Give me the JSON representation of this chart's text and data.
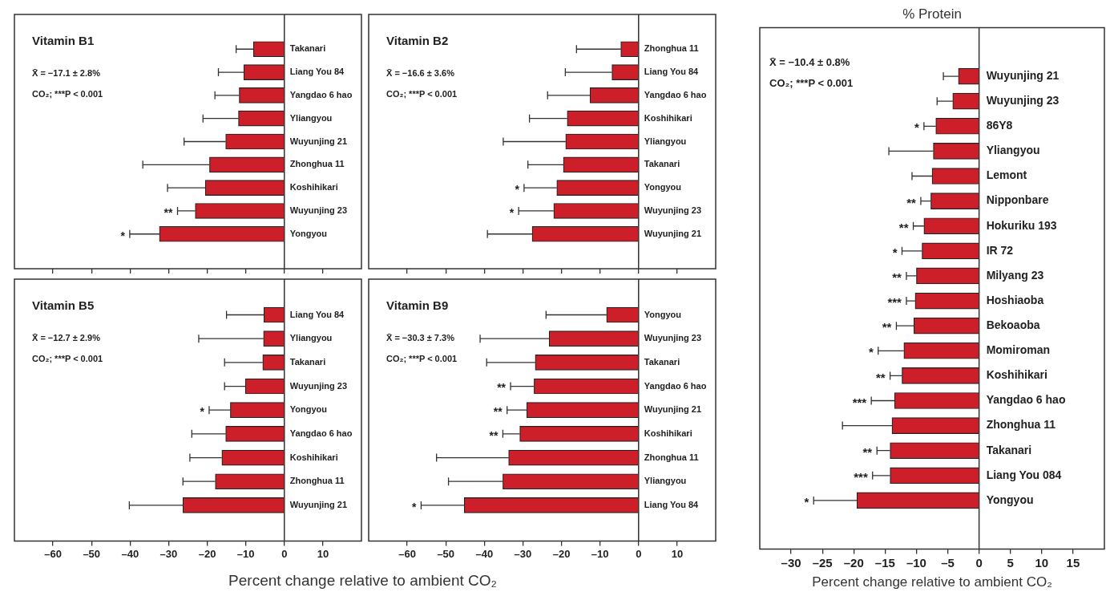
{
  "chart_data": [
    {
      "type": "bar",
      "orientation": "horizontal",
      "title": "Vitamin B1",
      "color": "#cc1f2a",
      "tick_labels": "y",
      "xlim": [
        -70,
        20
      ],
      "xticks": [
        {
          "value": -60,
          "label": "–60"
        },
        {
          "value": -50,
          "label": "–50"
        },
        {
          "value": -40,
          "label": "–40"
        },
        {
          "value": -30,
          "label": "–30"
        },
        {
          "value": -20,
          "label": "–20"
        },
        {
          "value": -10,
          "label": "–10"
        },
        0,
        10
      ],
      "categories": [
        "Takanari",
        "Liang You 84",
        "Yangdao 6 hao",
        "Yliangyou",
        "Wuyunjing 21",
        "Zhonghua 11",
        "Koshihikari",
        "Wuyunjing 23",
        "Yongyou"
      ],
      "values": [
        -8.0,
        -10.5,
        -11.7,
        -11.9,
        -15.2,
        -19.4,
        -20.5,
        -23.1,
        -32.4
      ],
      "errors": [
        [
          -12.5,
          -8.0
        ],
        [
          -17.1,
          -10.5
        ],
        [
          -18.0,
          -11.7
        ],
        [
          -21.1,
          -11.9
        ],
        [
          -26.0,
          -15.2
        ],
        [
          -36.7,
          -19.4
        ],
        [
          -30.3,
          -20.5
        ],
        [
          -27.7,
          -23.1
        ],
        [
          -40.1,
          -32.4
        ]
      ],
      "annotations": [
        "X̄ = −17.1 ± 2.8%",
        "CO₂; ***P < 0.001",
        {
          "text": "**",
          "x": -27.7,
          "y": "Wuyunjing 23"
        },
        {
          "text": "*",
          "x": -40.1,
          "y": "Yongyou"
        }
      ]
    },
    {
      "type": "bar",
      "orientation": "horizontal",
      "title": "Vitamin B2",
      "color": "#cc1f2a",
      "tick_labels": "y",
      "xlim": [
        -70,
        20
      ],
      "xticks": [
        {
          "value": -60,
          "label": "–60"
        },
        {
          "value": -50,
          "label": "–50"
        },
        {
          "value": -40,
          "label": "–40"
        },
        {
          "value": -30,
          "label": "–30"
        },
        {
          "value": -20,
          "label": "–20"
        },
        {
          "value": -10,
          "label": "–10"
        },
        0,
        10
      ],
      "categories": [
        "Zhonghua 11",
        "Liang You 84",
        "Yangdao 6 hao",
        "Koshihikari",
        "Yliangyou",
        "Takanari",
        "Yongyou",
        "Wuyunjing 23",
        "Wuyunjing 21"
      ],
      "values": [
        -4.6,
        -6.9,
        -12.6,
        -18.5,
        -18.9,
        -19.5,
        -21.2,
        -22.0,
        -27.6
      ],
      "errors": [
        [
          -16.1,
          -4.6
        ],
        [
          -19.0,
          -6.9
        ],
        [
          -23.6,
          -12.6
        ],
        [
          -28.3,
          -18.5
        ],
        [
          -35.1,
          -18.9
        ],
        [
          -28.7,
          -19.5
        ],
        [
          -29.7,
          -21.2
        ],
        [
          -31.1,
          -22.0
        ],
        [
          -39.2,
          -27.6
        ]
      ],
      "annotations": [
        "X̄ = −16.6 ± 3.6%",
        "CO₂; ***P < 0.001",
        {
          "text": "*",
          "x": -29.7,
          "y": "Yongyou"
        },
        {
          "text": "*",
          "x": -31.1,
          "y": "Wuyunjing 23"
        }
      ]
    },
    {
      "type": "bar",
      "orientation": "horizontal",
      "title": "Vitamin B5",
      "color": "#cc1f2a",
      "xlabel": "Percent change relative to ambient CO₂",
      "xlim": [
        -70,
        20
      ],
      "xticks": [
        {
          "value": -60,
          "label": "–60"
        },
        {
          "value": -50,
          "label": "–50"
        },
        {
          "value": -40,
          "label": "–40"
        },
        {
          "value": -30,
          "label": "–30"
        },
        {
          "value": -20,
          "label": "–20"
        },
        {
          "value": -10,
          "label": "–10"
        },
        0,
        10
      ],
      "categories": [
        "Liang You 84",
        "Yliangyou",
        "Takanari",
        "Wuyunjing 23",
        "Yongyou",
        "Yangdao 6 hao",
        "Koshihikari",
        "Zhonghua 11",
        "Wuyunjing 21"
      ],
      "values": [
        -5.3,
        -5.4,
        -5.6,
        -10.1,
        -14.0,
        -15.2,
        -16.2,
        -17.9,
        -26.3
      ],
      "errors": [
        [
          -15.0,
          -5.3
        ],
        [
          -22.2,
          -5.4
        ],
        [
          -15.5,
          -5.6
        ],
        [
          -15.5,
          -10.1
        ],
        [
          -19.5,
          -14.0
        ],
        [
          -24.0,
          -15.2
        ],
        [
          -24.5,
          -16.2
        ],
        [
          -26.3,
          -17.9
        ],
        [
          -40.2,
          -26.3
        ]
      ],
      "annotations": [
        "X̄ = −12.7 ± 2.9%",
        "CO₂; ***P < 0.001",
        {
          "text": "*",
          "x": -19.5,
          "y": "Yongyou"
        }
      ]
    },
    {
      "type": "bar",
      "orientation": "horizontal",
      "title": "Vitamin B9",
      "color": "#cc1f2a",
      "xlim": [
        -70,
        20
      ],
      "xticks": [
        {
          "value": -60,
          "label": "–60"
        },
        {
          "value": -50,
          "label": "–50"
        },
        {
          "value": -40,
          "label": "–40"
        },
        {
          "value": -30,
          "label": "–30"
        },
        {
          "value": -20,
          "label": "–20"
        },
        {
          "value": -10,
          "label": "–10"
        },
        0,
        10
      ],
      "categories": [
        "Yongyou",
        "Wuyunjing 23",
        "Takanari",
        "Yangdao 6 hao",
        "Wuyunjing 21",
        "Koshihikari",
        "Zhonghua 11",
        "Yliangyou",
        "Liang You 84"
      ],
      "values": [
        -8.3,
        -23.2,
        -26.8,
        -27.1,
        -29.0,
        -30.8,
        -33.7,
        -35.2,
        -45.2
      ],
      "errors": [
        [
          -24.0,
          -8.3
        ],
        [
          -41.1,
          -23.2
        ],
        [
          -39.4,
          -26.8
        ],
        [
          -33.2,
          -27.1
        ],
        [
          -34.1,
          -29.0
        ],
        [
          -35.2,
          -30.8
        ],
        [
          -52.4,
          -33.7
        ],
        [
          -49.3,
          -35.2
        ],
        [
          -56.4,
          -45.2
        ]
      ],
      "annotations": [
        "X̄ = −30.3 ± 7.3%",
        "CO₂; ***P < 0.001",
        {
          "text": "**",
          "x": -33.2,
          "y": "Yangdao 6 hao"
        },
        {
          "text": "**",
          "x": -34.1,
          "y": "Wuyunjing 21"
        },
        {
          "text": "**",
          "x": -35.2,
          "y": "Koshihikari"
        },
        {
          "text": "*",
          "x": -56.4,
          "y": "Liang You 84"
        }
      ]
    },
    {
      "type": "bar",
      "orientation": "horizontal",
      "title": "% Protein",
      "color": "#cc1f2a",
      "xlabel": "Percent change relative to ambient CO₂",
      "xlim": [
        -35,
        20
      ],
      "xticks": [
        {
          "value": -30,
          "label": "–30"
        },
        {
          "value": -25,
          "label": "–25"
        },
        {
          "value": -20,
          "label": "–20"
        },
        {
          "value": -15,
          "label": "–15"
        },
        {
          "value": -10,
          "label": "–10"
        },
        {
          "value": -5,
          "label": "–5"
        },
        0,
        5,
        10,
        15
      ],
      "categories": [
        "Wuyunjing 21",
        "Wuyunjing 23",
        "86Y8",
        "Yliangyou",
        "Lemont",
        "Nipponbare",
        "Hokuriku 193",
        "IR 72",
        "Milyang 23",
        "Hoshiaoba",
        "Bekoaoba",
        "Momiroman",
        "Koshihikari",
        "Yangdao 6 hao",
        "Zhonghua 11",
        "Takanari",
        "Liang You 084",
        "Yongyou"
      ],
      "values": [
        -3.3,
        -4.2,
        -6.9,
        -7.3,
        -7.5,
        -7.7,
        -8.8,
        -9.1,
        -10.0,
        -10.2,
        -10.4,
        -12.0,
        -12.3,
        -13.5,
        -13.9,
        -14.2,
        -14.2,
        -19.5
      ],
      "errors": [
        [
          -5.7,
          -3.3
        ],
        [
          -6.7,
          -4.2
        ],
        [
          -8.8,
          -6.9
        ],
        [
          -14.4,
          -7.3
        ],
        [
          -10.7,
          -7.5
        ],
        [
          -9.3,
          -7.7
        ],
        [
          -10.5,
          -8.8
        ],
        [
          -12.3,
          -9.1
        ],
        [
          -11.6,
          -10.0
        ],
        [
          -11.6,
          -10.2
        ],
        [
          -13.2,
          -10.4
        ],
        [
          -16.1,
          -12.0
        ],
        [
          -14.2,
          -12.3
        ],
        [
          -17.2,
          -13.5
        ],
        [
          -21.8,
          -13.9
        ],
        [
          -16.3,
          -14.2
        ],
        [
          -17.0,
          -14.2
        ],
        [
          -26.4,
          -19.5
        ]
      ],
      "annotations": [
        "X̄ = −10.4 ± 0.8%",
        "CO₂; ***P < 0.001",
        {
          "text": "*",
          "x": -8.8,
          "y": "86Y8"
        },
        {
          "text": "**",
          "x": -9.3,
          "y": "Nipponbare"
        },
        {
          "text": "**",
          "x": -10.5,
          "y": "Hokuriku 193"
        },
        {
          "text": "*",
          "x": -12.3,
          "y": "IR 72"
        },
        {
          "text": "**",
          "x": -11.6,
          "y": "Milyang 23"
        },
        {
          "text": "***",
          "x": -11.6,
          "y": "Hoshiaoba"
        },
        {
          "text": "**",
          "x": -13.2,
          "y": "Bekoaoba"
        },
        {
          "text": "*",
          "x": -16.1,
          "y": "Momiroman"
        },
        {
          "text": "**",
          "x": -14.2,
          "y": "Koshihikari"
        },
        {
          "text": "***",
          "x": -17.2,
          "y": "Yangdao 6 hao"
        },
        {
          "text": "**",
          "x": -16.3,
          "y": "Takanari"
        },
        {
          "text": "***",
          "x": -17.0,
          "y": "Liang You 084"
        },
        {
          "text": "*",
          "x": -26.4,
          "y": "Yongyou"
        }
      ]
    }
  ]
}
